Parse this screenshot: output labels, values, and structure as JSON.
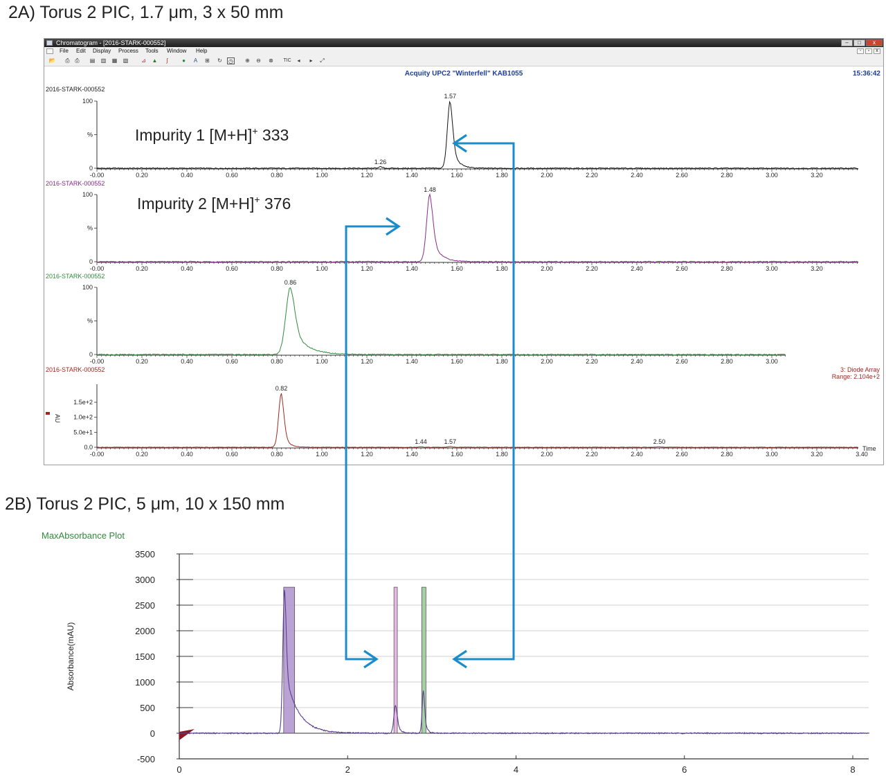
{
  "headings": {
    "a": "2A) Torus 2 PIC, 1.7 μm, 3 x 50 mm",
    "b": "2B) Torus 2 PIC, 5 μm, 10 x 150 mm"
  },
  "window": {
    "title": "Chromatogram - [2016-STARK-000552]",
    "menu": [
      "File",
      "Edit",
      "Display",
      "Process",
      "Tools",
      "Window",
      "Help"
    ],
    "toolbar_icons": [
      "open-icon",
      "print-icon",
      "print-preview-icon",
      "copy-icon",
      "paste-icon",
      "copy-list-icon",
      "chart-icon",
      "peaks-icon",
      "integrate-icon",
      "green-circle-icon",
      "text-icon",
      "layout-icon",
      "refresh-icon",
      "timer-icon",
      "zoom-in-icon",
      "zoom-out-icon",
      "zoom-reset-icon",
      "tic-icon",
      "back-icon",
      "forward-icon",
      "fit-icon"
    ],
    "tic_label": "TIC",
    "instrument": "Acquity UPC2 \"Winterfell\" KAB1055",
    "time": "15:36:42",
    "colors": {
      "accent_text": "#1c3f94"
    }
  },
  "annotations": {
    "impurity1": {
      "prefix": "Impurity 1 [M+H]",
      "sup": "+",
      "suffix": " 333"
    },
    "impurity2": {
      "prefix": "Impurity 2 [M+H]",
      "sup": "+",
      "suffix": " 376"
    },
    "arrow_color": "#1a8cca"
  },
  "chart_data": [
    {
      "type": "line",
      "trace_label": "2016-STARK-000552",
      "color": "#111111",
      "x_ticks": [
        "-0.00",
        "0.20",
        "0.40",
        "0.60",
        "0.80",
        "1.00",
        "1.20",
        "1.40",
        "1.60",
        "1.80",
        "2.00",
        "2.20",
        "2.40",
        "2.60",
        "2.80",
        "3.00",
        "3.20"
      ],
      "y_ticks": [
        "100",
        "%",
        "0"
      ],
      "xlim": [
        0,
        3.52
      ],
      "ylim": [
        0,
        100
      ],
      "peaks": [
        {
          "x": 1.57,
          "height": 100,
          "width": 0.012,
          "tail": 0.025
        },
        {
          "x": 1.26,
          "height": 2,
          "width": 0.01,
          "tail": 0.01
        }
      ],
      "peak_labels": [
        {
          "x": 1.57,
          "label": "1.57"
        },
        {
          "x": 1.26,
          "label": "1.26"
        }
      ]
    },
    {
      "type": "line",
      "trace_label": "2016-STARK-000552",
      "color": "#8b2a8b",
      "x_ticks": [
        "-0.00",
        "0.20",
        "0.40",
        "0.60",
        "0.80",
        "1.00",
        "1.20",
        "1.40",
        "1.60",
        "1.80",
        "2.00",
        "2.20",
        "2.40",
        "2.60",
        "2.80",
        "3.00",
        "3.20"
      ],
      "y_ticks": [
        "100",
        "%",
        "0"
      ],
      "xlim": [
        0,
        3.52
      ],
      "ylim": [
        0,
        100
      ],
      "peaks": [
        {
          "x": 1.48,
          "height": 100,
          "width": 0.014,
          "tail": 0.035
        }
      ],
      "peak_labels": [
        {
          "x": 1.48,
          "label": "1.48"
        }
      ]
    },
    {
      "type": "line",
      "trace_label": "2016-STARK-000552",
      "color": "#2e8b3a",
      "x_ticks": [
        "-0.00",
        "0.20",
        "0.40",
        "0.60",
        "0.80",
        "1.00",
        "1.20",
        "1.40",
        "1.60",
        "1.80",
        "2.00",
        "2.20",
        "2.40",
        "2.60",
        "2.80",
        "3.00"
      ],
      "y_ticks": [
        "100",
        "%",
        "0"
      ],
      "xlim": [
        0,
        3.52
      ],
      "ylim": [
        0,
        100
      ],
      "peaks": [
        {
          "x": 0.86,
          "height": 100,
          "width": 0.02,
          "tail": 0.06
        }
      ],
      "peak_labels": [
        {
          "x": 0.86,
          "label": "0.86"
        }
      ]
    },
    {
      "type": "line",
      "trace_label": "2016-STARK-000552",
      "color": "#a0281e",
      "detector": "3: Diode Array",
      "range": "Range: 2.104e+2",
      "y_unit": "AU",
      "x_axis_label": "Time",
      "x_ticks": [
        "-0.00",
        "0.20",
        "0.40",
        "0.60",
        "0.80",
        "1.00",
        "1.20",
        "1.40",
        "1.60",
        "1.80",
        "2.00",
        "2.20",
        "2.40",
        "2.60",
        "2.80",
        "3.00",
        "3.20",
        "3.40"
      ],
      "y_ticks": [
        "1.5e+2",
        "1.0e+2",
        "5.0e+1",
        "0.0"
      ],
      "y_tick_values": [
        150,
        100,
        50,
        0
      ],
      "xlim": [
        0,
        3.52
      ],
      "ylim": [
        0,
        210
      ],
      "peaks": [
        {
          "x": 0.82,
          "height": 180,
          "width": 0.012,
          "tail": 0.02
        },
        {
          "x": 1.44,
          "height": 2,
          "width": 0.01,
          "tail": 0.01
        },
        {
          "x": 1.57,
          "height": 2.5,
          "width": 0.01,
          "tail": 0.01
        },
        {
          "x": 2.5,
          "height": 2,
          "width": 0.01,
          "tail": 0.02
        }
      ],
      "peak_labels": [
        {
          "x": 0.82,
          "label": "0.82"
        },
        {
          "x": 1.44,
          "label": "1.44"
        },
        {
          "x": 1.57,
          "label": "1.57"
        },
        {
          "x": 2.5,
          "label": "2.50"
        }
      ]
    },
    {
      "type": "line",
      "title": "MaxAbsorbance Plot",
      "ylabel": "Absorbance(mAU)",
      "color": "#5a3e8f",
      "y_ticks": [
        3500,
        3000,
        2500,
        2000,
        1500,
        1000,
        500,
        0,
        -500
      ],
      "x_ticks": [
        0,
        2,
        4,
        6,
        8
      ],
      "xlim": [
        0,
        8.2
      ],
      "ylim": [
        -500,
        3500
      ],
      "grid": true,
      "peaks": [
        {
          "x": 1.25,
          "height": 2800,
          "width": 0.02,
          "tail": 0.15
        },
        {
          "x": 2.57,
          "height": 550,
          "width": 0.02,
          "tail": 0.04
        },
        {
          "x": 2.9,
          "height": 850,
          "width": 0.015,
          "tail": 0.03
        }
      ],
      "fractions": [
        {
          "x0": 1.24,
          "x1": 1.37,
          "top": 2850,
          "color": "#b39ad0"
        },
        {
          "x0": 2.55,
          "x1": 2.59,
          "top": 2850,
          "color": "#e7b2e4"
        },
        {
          "x0": 2.88,
          "x1": 2.93,
          "top": 2850,
          "color": "#9ccc9c"
        }
      ]
    }
  ]
}
